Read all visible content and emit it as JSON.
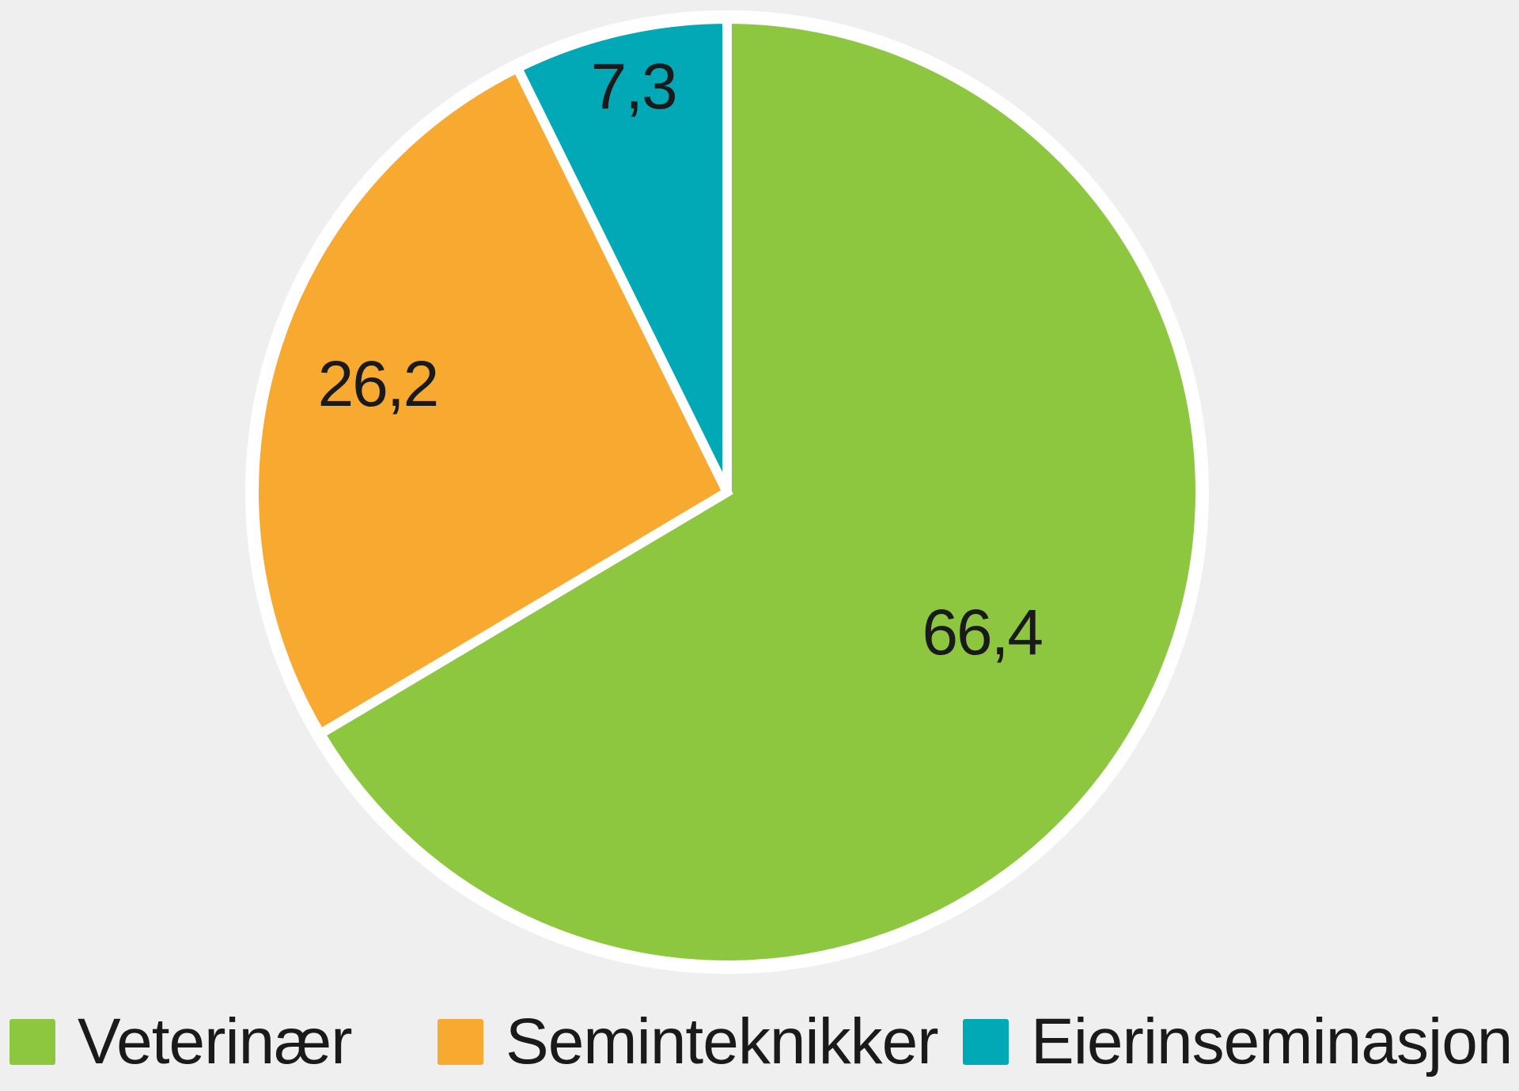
{
  "chart_data": {
    "type": "pie",
    "categories": [
      "Veterinær",
      "Seminteknikker",
      "Eierinseminasjon"
    ],
    "values": [
      66.4,
      26.2,
      7.3
    ],
    "value_labels": [
      "66,4",
      "26,2",
      "7,3"
    ],
    "colors": [
      "#8dc63f",
      "#f7a930",
      "#00a9b5"
    ],
    "start_angle_deg": 0,
    "direction": "clockwise",
    "legend_position": "bottom"
  }
}
